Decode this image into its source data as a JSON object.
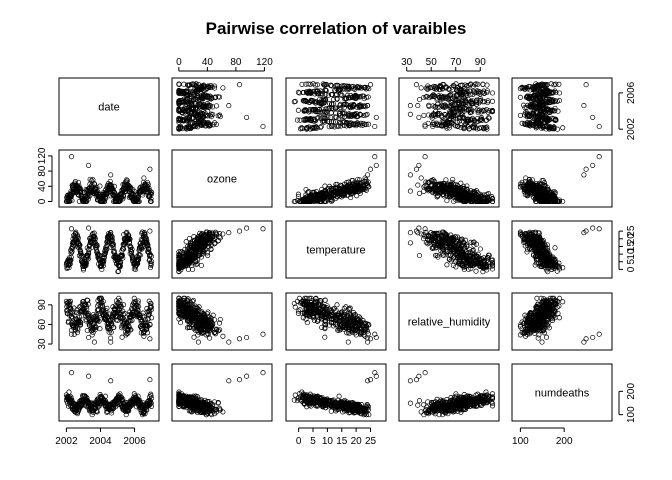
{
  "chart_data": {
    "type": "scatter",
    "title": "Pairwise correlation of varaibles",
    "variables": [
      {
        "name": "date",
        "range": [
          2001.8,
          2007.2
        ],
        "ticks": [
          2002,
          2004,
          2006
        ],
        "tick_labels": [
          "2002",
          "2004",
          "2006"
        ]
      },
      {
        "name": "ozone",
        "range": [
          -4,
          125
        ],
        "ticks": [
          0,
          40,
          80,
          120
        ],
        "tick_labels": [
          "0",
          "40",
          "80",
          "120"
        ]
      },
      {
        "name": "temperature",
        "range": [
          -3,
          29
        ],
        "ticks": [
          0,
          5,
          10,
          15,
          20,
          25
        ],
        "tick_labels": [
          "0",
          "5",
          "10",
          "15",
          "20",
          "25"
        ]
      },
      {
        "name": "relative_humidity",
        "range": [
          27,
          102
        ],
        "ticks": [
          30,
          50,
          70,
          90
        ],
        "tick_labels": [
          "30",
          "50",
          "70",
          "90"
        ]
      },
      {
        "name": "numdeaths",
        "range": [
          90,
          300
        ],
        "ticks": [
          100,
          200
        ],
        "tick_labels": [
          "100",
          "200"
        ]
      }
    ],
    "axis_labels": {
      "top": [
        {
          "var": 1,
          "ticks": [
            0,
            40,
            80,
            120
          ],
          "labels": [
            "0",
            "40",
            "80",
            "120"
          ]
        },
        {
          "var": 3,
          "ticks": [
            30,
            50,
            70,
            90
          ],
          "labels": [
            "30",
            "50",
            "70",
            "90"
          ]
        }
      ],
      "bottom": [
        {
          "var": 0,
          "ticks": [
            2002,
            2004,
            2006
          ],
          "labels": [
            "2002",
            "2004",
            "2006"
          ]
        },
        {
          "var": 2,
          "ticks": [
            0,
            5,
            10,
            15,
            20,
            25
          ],
          "labels": [
            "0",
            "5",
            "10",
            "15",
            "20",
            "25"
          ]
        },
        {
          "var": 4,
          "ticks": [
            100,
            200
          ],
          "labels": [
            "100",
            "200"
          ]
        }
      ],
      "left": [
        {
          "var": 1,
          "ticks": [
            0,
            40,
            80,
            120
          ],
          "labels": [
            "0",
            "40",
            "80",
            "120"
          ]
        },
        {
          "var": 3,
          "ticks": [
            30,
            60,
            90
          ],
          "labels": [
            "30",
            "60",
            "90"
          ]
        }
      ],
      "right": [
        {
          "var": 0,
          "ticks": [
            2002,
            2006
          ],
          "labels": [
            "2002",
            "2006"
          ]
        },
        {
          "var": 2,
          "ticks": [
            0,
            5,
            10,
            15,
            20,
            25
          ],
          "labels": [
            "0",
            "5",
            "10",
            "15",
            "20",
            "25"
          ]
        },
        {
          "var": 4,
          "ticks": [
            100,
            200
          ],
          "labels": [
            "100",
            "200"
          ]
        }
      ]
    },
    "n_observations": 400,
    "point_style": "open-circle",
    "grid": false,
    "legend": "none"
  }
}
